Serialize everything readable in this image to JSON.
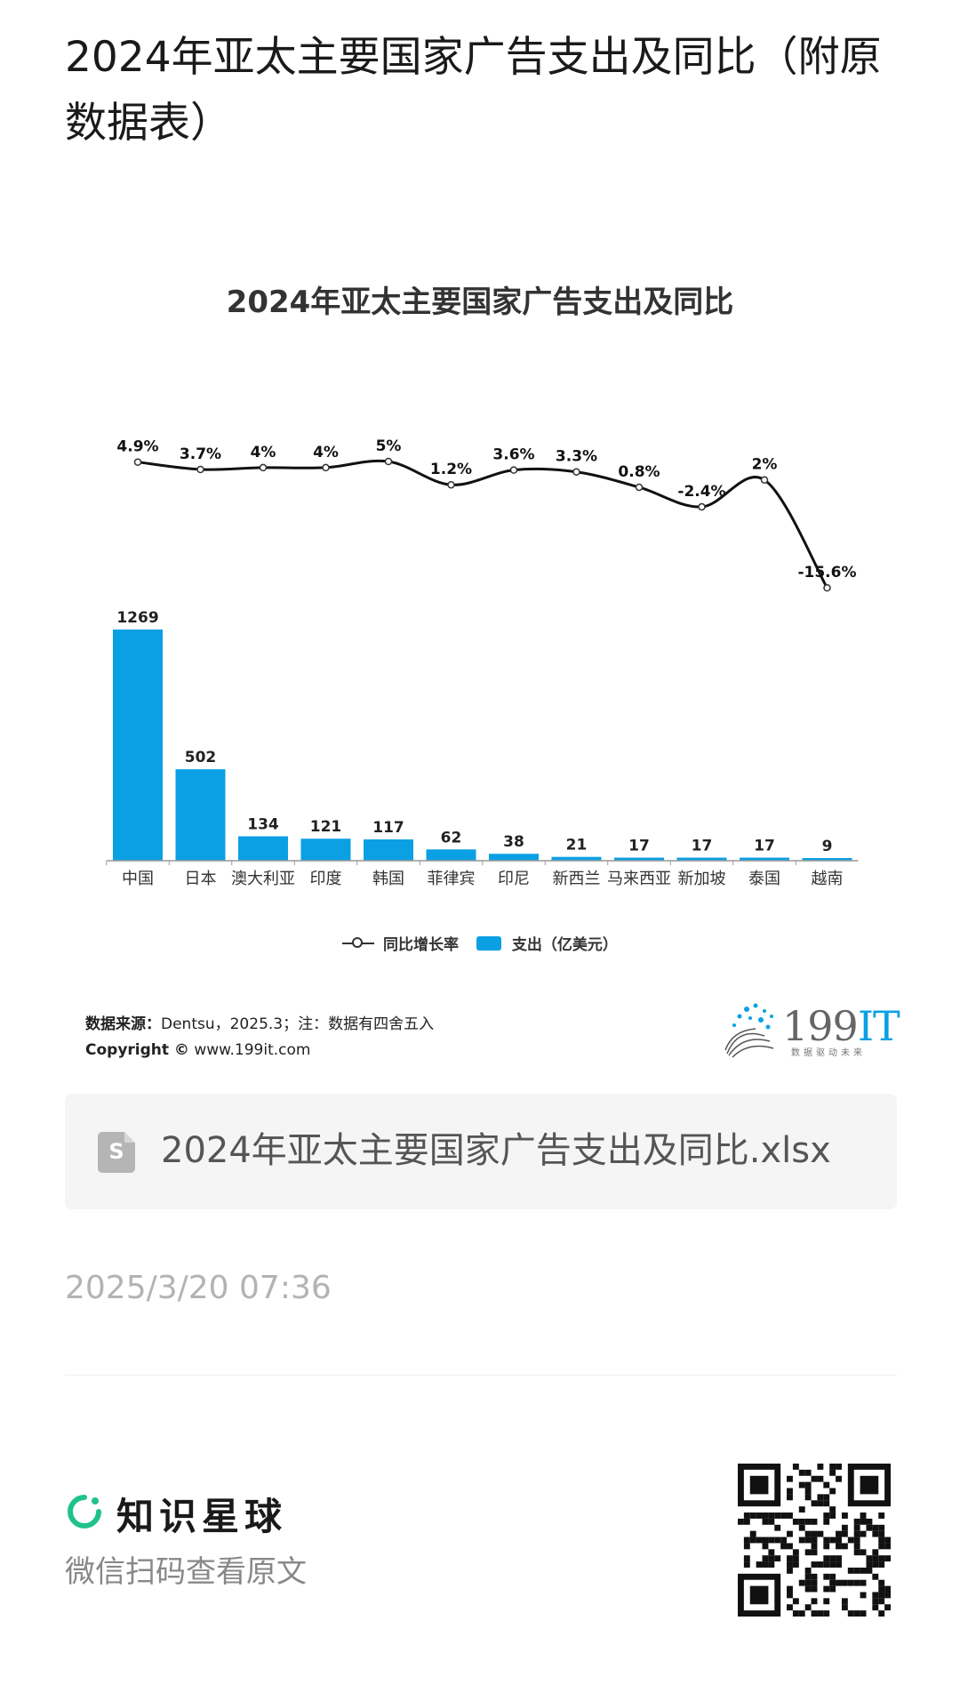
{
  "page": {
    "title": "2024年亚太主要国家广告支出及同比（附原数据表）",
    "file_name": "2024年亚太主要国家广告支出及同比.xlsx",
    "file_icon_letter": "S",
    "timestamp": "2025/3/20 07:36",
    "brand_name": "知识星球",
    "scan_text": "微信扫码查看原文"
  },
  "source": {
    "label": "数据来源：",
    "text": "Dentsu，2025.3；注：数据有四舍五入",
    "copyright_label": "Copyright ©",
    "copyright_text": "www.199it.com"
  },
  "logo": {
    "text_main": "199",
    "text_it": "IT",
    "tagline": "数据驱动未来",
    "accent_color": "#0ba0e4"
  },
  "chart_data": {
    "type": "bar",
    "title": "2024年亚太主要国家广告支出及同比",
    "categories": [
      "中国",
      "日本",
      "澳大利亚",
      "印度",
      "韩国",
      "菲律宾",
      "印尼",
      "新西兰",
      "马来西亚",
      "新加坡",
      "泰国",
      "越南"
    ],
    "series": [
      {
        "name": "支出（亿美元）",
        "type": "bar",
        "color": "#0ba0e4",
        "values": [
          1269,
          502,
          134,
          121,
          117,
          62,
          38,
          21,
          17,
          17,
          17,
          9
        ]
      },
      {
        "name": "同比增长率",
        "type": "line",
        "color": "#111111",
        "values": [
          4.9,
          3.7,
          4,
          4,
          5,
          1.2,
          3.6,
          3.3,
          0.8,
          -2.4,
          2,
          -15.6
        ],
        "labels": [
          "4.9%",
          "3.7%",
          "4%",
          "4%",
          "5%",
          "1.2%",
          "3.6%",
          "3.3%",
          "0.8%",
          "-2.4%",
          "2%",
          "-15.6%"
        ]
      }
    ],
    "legend": [
      "同比增长率",
      "支出（亿美元）"
    ],
    "legend_position": "bottom",
    "grid": false
  }
}
